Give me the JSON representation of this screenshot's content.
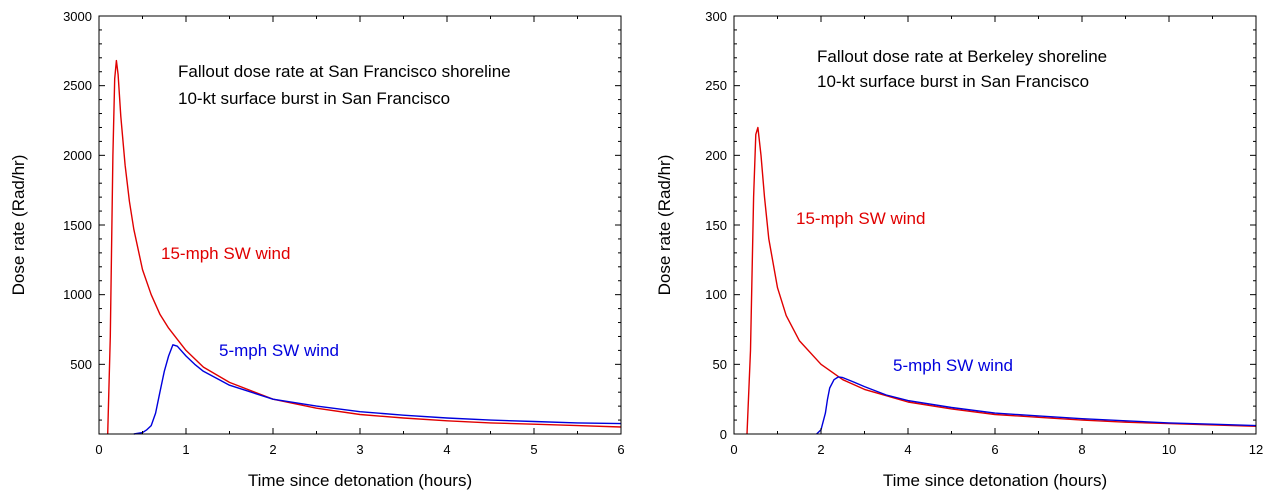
{
  "chart_data": [
    {
      "type": "line",
      "annotations": [
        "Fallout dose rate at San Francisco shoreline",
        "10-kt surface burst in San Francisco"
      ],
      "xlabel": "Time since detonation (hours)",
      "ylabel": "Dose rate (Rad/hr)",
      "xlim": [
        0,
        6
      ],
      "ylim": [
        0,
        3000
      ],
      "xticks": [
        "0",
        "1",
        "2",
        "3",
        "4",
        "5",
        "6"
      ],
      "yticks": [
        "",
        "500",
        "1000",
        "1500",
        "2000",
        "2500",
        "3000"
      ],
      "grid": false,
      "series": [
        {
          "name": "15-mph SW wind",
          "color": "#e00000",
          "x": [
            0.1,
            0.13,
            0.16,
            0.18,
            0.2,
            0.22,
            0.25,
            0.3,
            0.35,
            0.4,
            0.5,
            0.6,
            0.7,
            0.8,
            0.9,
            1.0,
            1.2,
            1.5,
            2.0,
            2.5,
            3.0,
            3.5,
            4.0,
            4.5,
            5.0,
            5.5,
            6.0
          ],
          "y": [
            0,
            700,
            2000,
            2550,
            2680,
            2580,
            2280,
            1930,
            1670,
            1470,
            1180,
            1000,
            860,
            760,
            680,
            600,
            480,
            370,
            250,
            185,
            140,
            115,
            95,
            80,
            70,
            60,
            50
          ]
        },
        {
          "name": "5-mph SW wind",
          "color": "#0000dd",
          "x": [
            0.4,
            0.5,
            0.55,
            0.6,
            0.65,
            0.7,
            0.75,
            0.8,
            0.85,
            0.9,
            1.0,
            1.1,
            1.2,
            1.5,
            2.0,
            2.5,
            3.0,
            3.5,
            4.0,
            4.5,
            5.0,
            5.5,
            6.0
          ],
          "y": [
            0,
            10,
            30,
            60,
            150,
            300,
            450,
            560,
            640,
            630,
            560,
            500,
            450,
            350,
            250,
            200,
            160,
            135,
            115,
            100,
            90,
            80,
            75
          ]
        }
      ]
    },
    {
      "type": "line",
      "annotations": [
        "Fallout dose rate at Berkeley shoreline",
        "10-kt surface burst in San Francisco"
      ],
      "xlabel": "Time since detonation (hours)",
      "ylabel": "Dose rate (Rad/hr)",
      "xlim": [
        0,
        12
      ],
      "ylim": [
        0,
        300
      ],
      "xticks": [
        "0",
        "2",
        "4",
        "6",
        "8",
        "10",
        "12"
      ],
      "yticks": [
        "0",
        "50",
        "100",
        "150",
        "200",
        "250",
        "300"
      ],
      "grid": false,
      "series": [
        {
          "name": "15-mph SW wind",
          "color": "#e00000",
          "x": [
            0.3,
            0.38,
            0.45,
            0.5,
            0.55,
            0.62,
            0.7,
            0.8,
            1.0,
            1.2,
            1.5,
            2.0,
            2.5,
            3.0,
            4.0,
            5.0,
            6.0,
            7.0,
            8.0,
            9.0,
            10.0,
            11.0,
            12.0
          ],
          "y": [
            0,
            60,
            170,
            215,
            220,
            200,
            170,
            140,
            105,
            85,
            67,
            50,
            39,
            32,
            23,
            18,
            14,
            12,
            10,
            8.5,
            7.5,
            6.5,
            5.5
          ]
        },
        {
          "name": "5-mph SW wind",
          "color": "#0000dd",
          "x": [
            1.9,
            2.0,
            2.1,
            2.15,
            2.2,
            2.3,
            2.4,
            2.5,
            2.7,
            3.0,
            3.5,
            4.0,
            5.0,
            6.0,
            7.0,
            8.0,
            9.0,
            10.0,
            11.0,
            12.0
          ],
          "y": [
            0,
            3,
            15,
            25,
            33,
            39,
            41,
            40.5,
            38,
            34,
            28,
            24,
            19,
            15,
            13,
            11,
            9.5,
            8,
            7,
            6
          ]
        }
      ]
    }
  ]
}
